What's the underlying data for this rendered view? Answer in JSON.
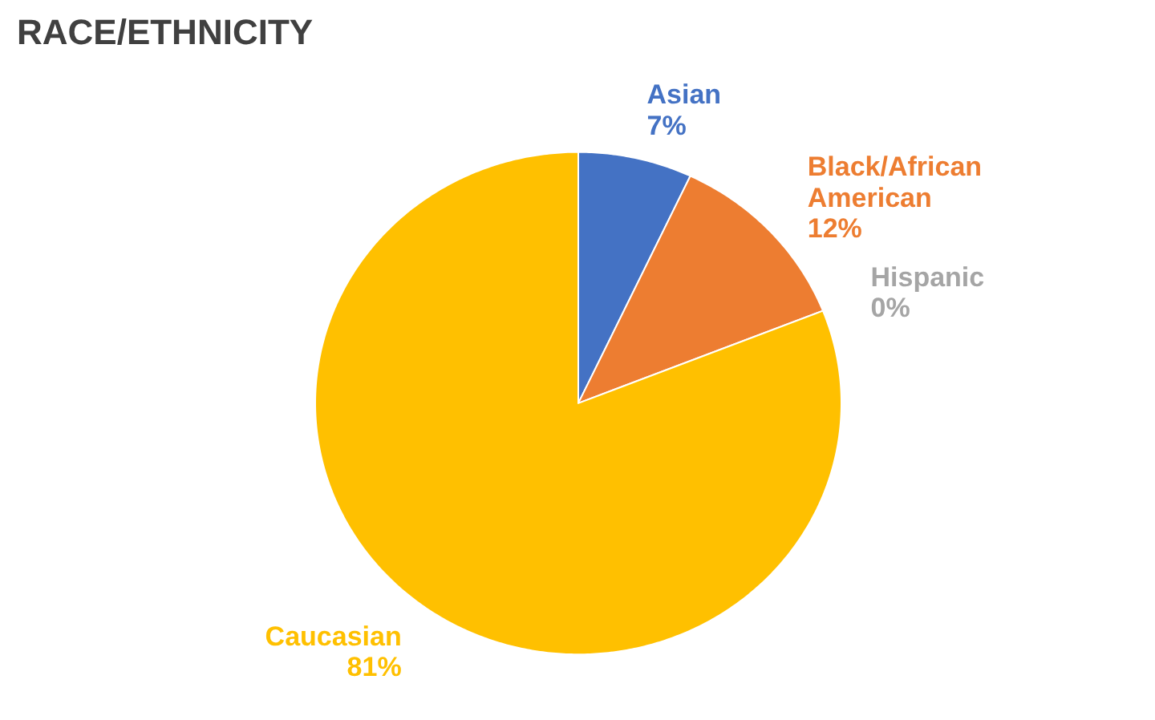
{
  "chart_data": {
    "type": "pie",
    "title": "RACE/ETHNICITY",
    "categories": [
      "Asian",
      "Black/African American",
      "Hispanic",
      "Caucasian"
    ],
    "values": [
      7,
      12,
      0,
      81
    ],
    "value_labels": [
      "7%",
      "12%",
      "0%",
      "81%"
    ],
    "colors": [
      "#4472c4",
      "#ed7d31",
      "#a5a5a5",
      "#ffc000"
    ],
    "legend": false
  }
}
